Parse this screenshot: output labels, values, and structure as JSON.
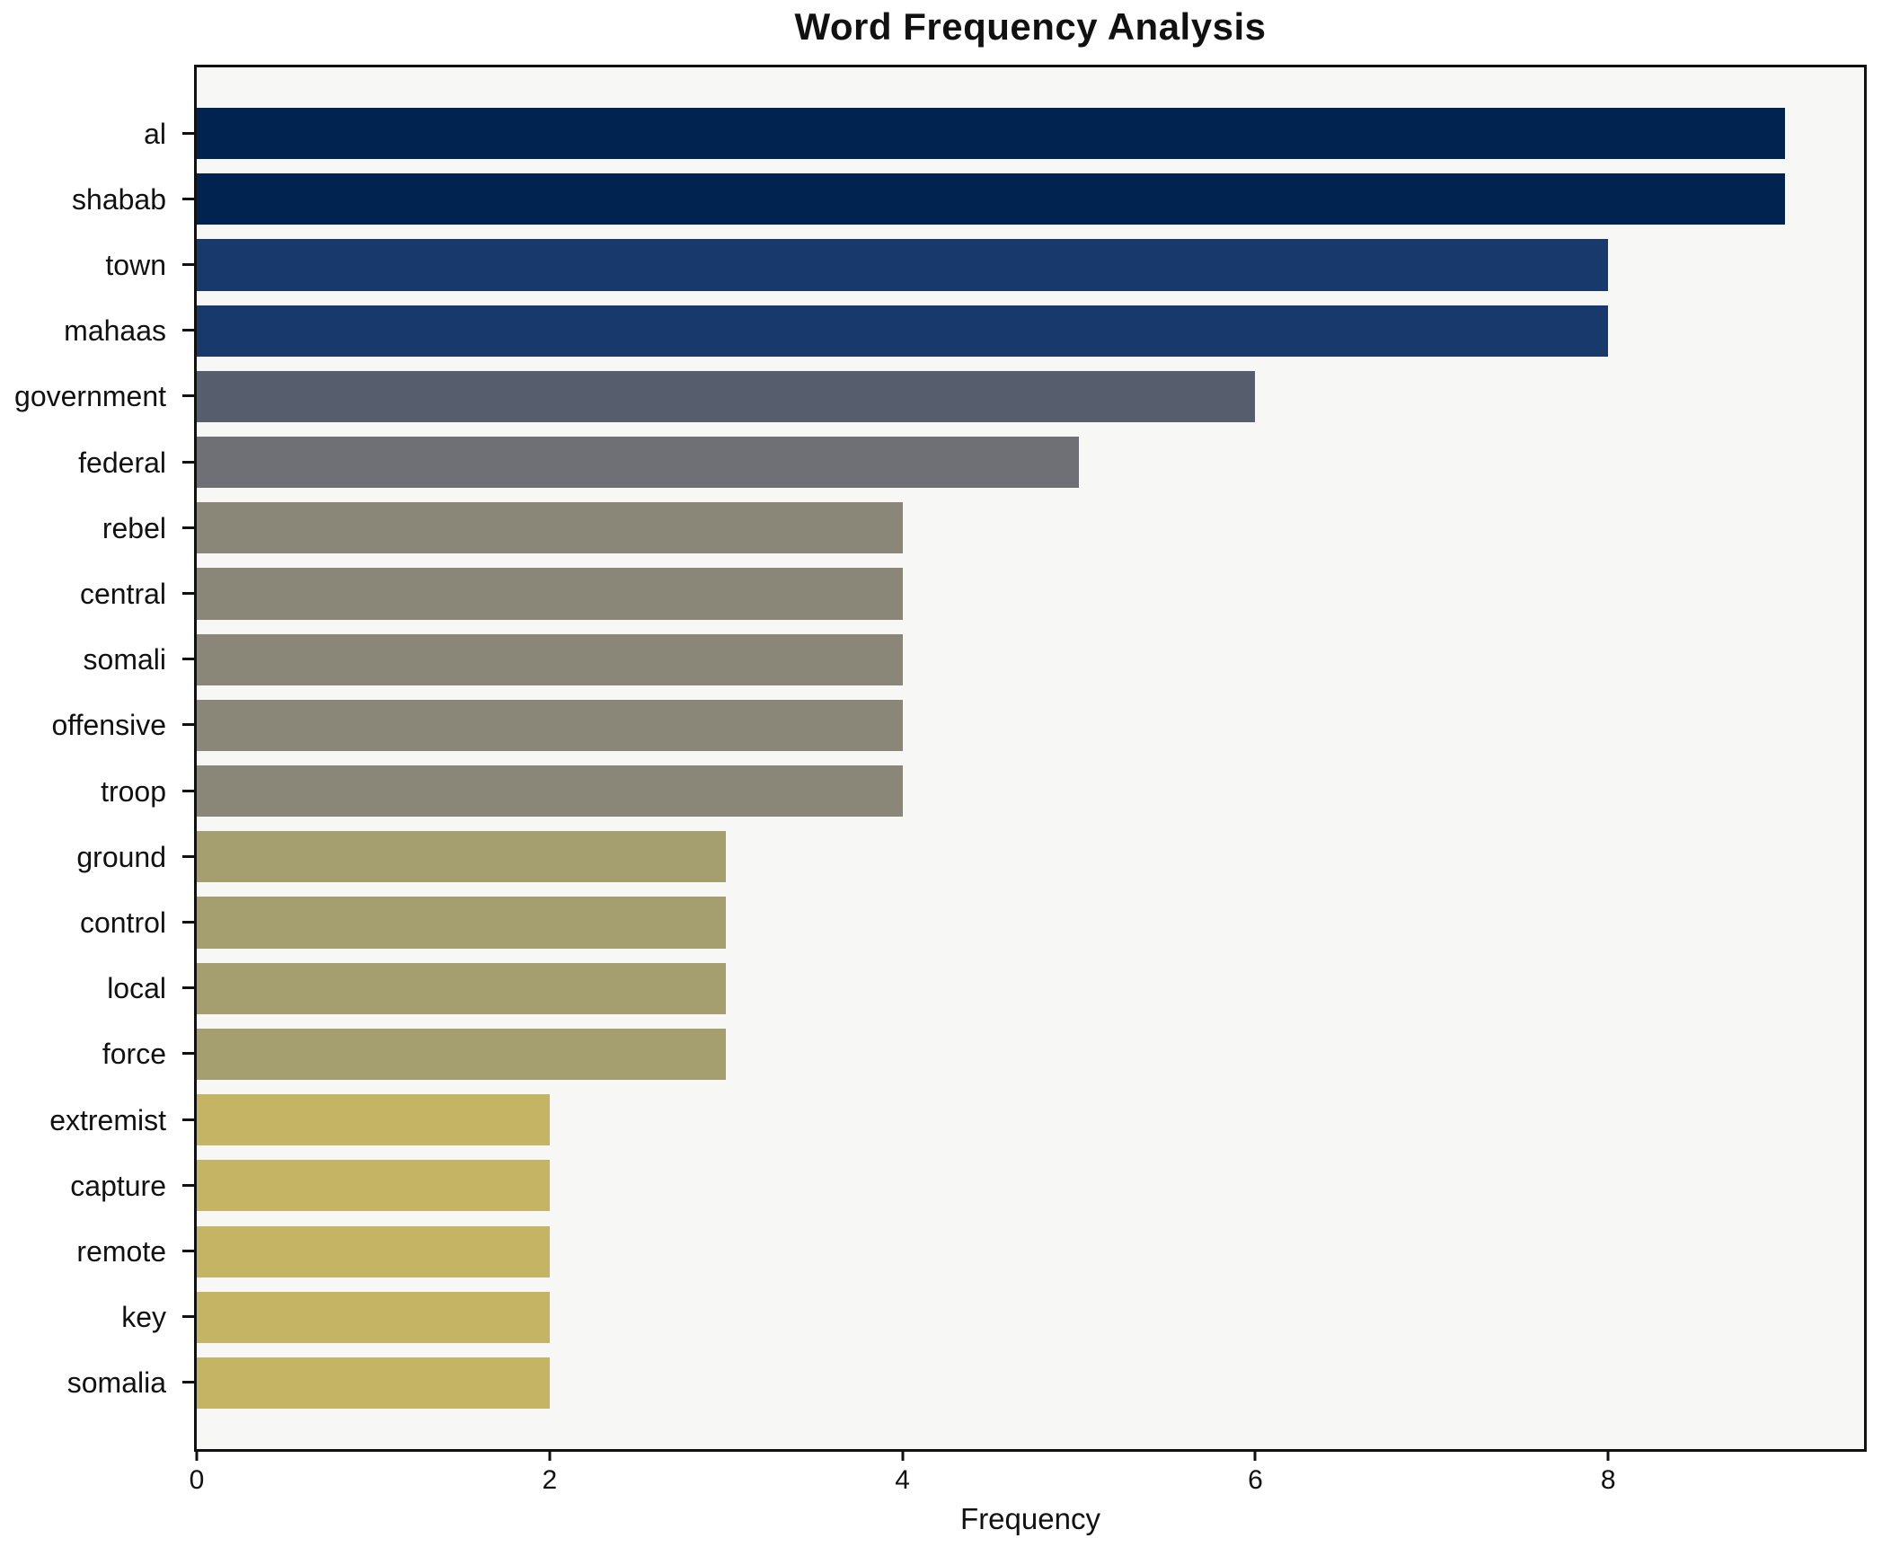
{
  "chart_data": {
    "type": "bar",
    "orientation": "horizontal",
    "title": "Word Frequency Analysis",
    "xlabel": "Frequency",
    "ylabel": "",
    "categories": [
      "al",
      "shabab",
      "town",
      "mahaas",
      "government",
      "federal",
      "rebel",
      "central",
      "somali",
      "offensive",
      "troop",
      "ground",
      "control",
      "local",
      "force",
      "extremist",
      "capture",
      "remote",
      "key",
      "somalia"
    ],
    "values": [
      9,
      9,
      8,
      8,
      6,
      5,
      4,
      4,
      4,
      4,
      4,
      3,
      3,
      3,
      3,
      2,
      2,
      2,
      2,
      2
    ],
    "xlim": [
      0,
      9.45
    ],
    "xticks": [
      0,
      2,
      4,
      6,
      8
    ],
    "grid": false,
    "legend": "none",
    "color_by_value": {
      "9": "#00234f",
      "8": "#18396b",
      "6": "#565e6e",
      "5": "#6f7076",
      "4": "#8a8778",
      "3": "#a59e6f",
      "2": "#c5b463"
    },
    "plot_background": "#f7f7f5",
    "figure_background": "#ffffff",
    "spine_color": "#111111",
    "text_color": "#111111"
  }
}
